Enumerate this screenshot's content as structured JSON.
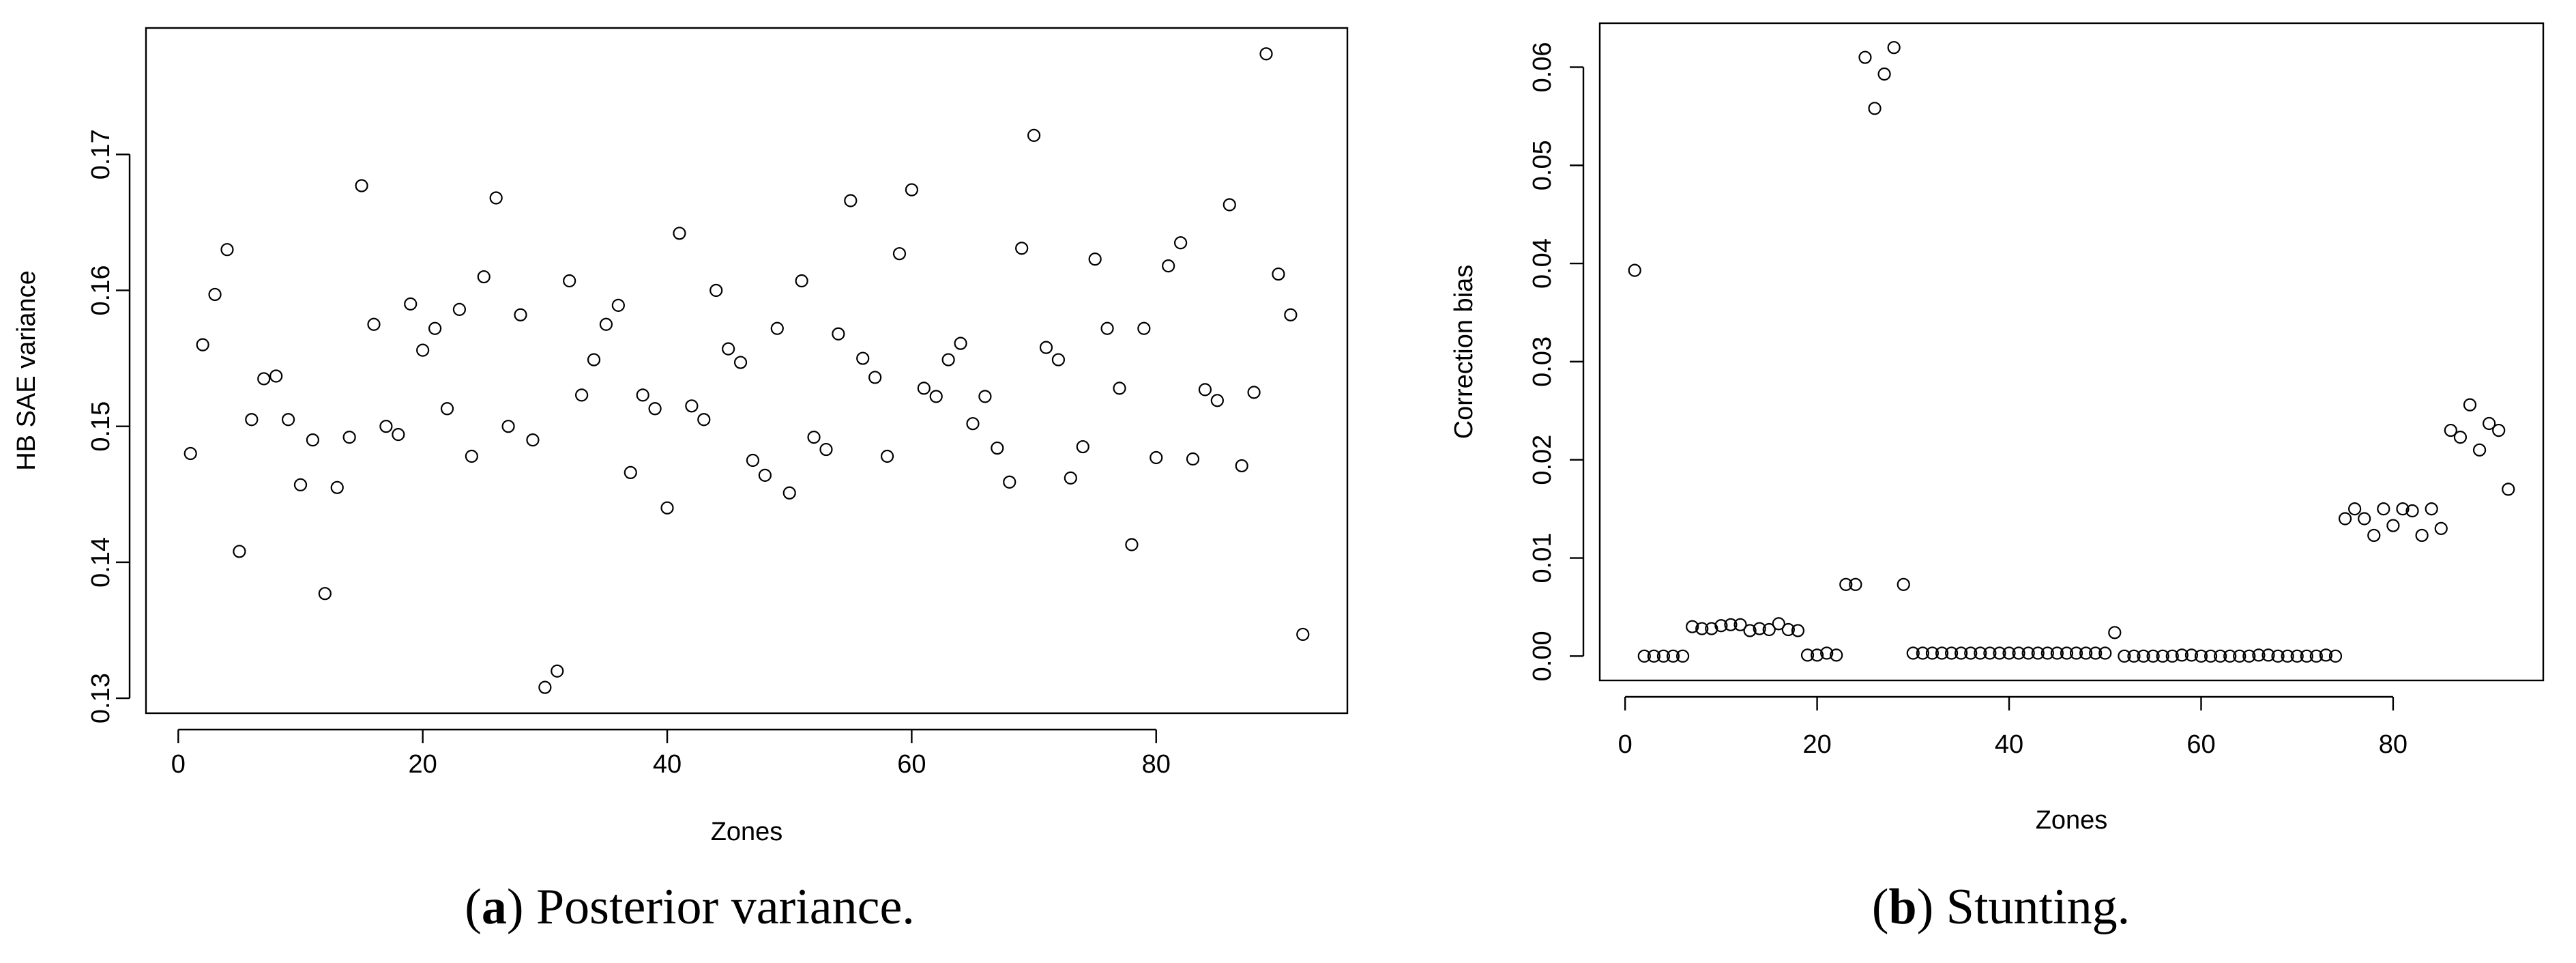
{
  "chart_data": [
    {
      "type": "scatter",
      "xlabel": "Zones",
      "ylabel": "HB SAE variance",
      "caption": [
        "(",
        "a",
        ") Posterior variance."
      ],
      "color": "#000000",
      "x": [
        1,
        2,
        3,
        4,
        5,
        6,
        7,
        8,
        9,
        10,
        11,
        12,
        13,
        14,
        15,
        16,
        17,
        18,
        19,
        20,
        21,
        22,
        23,
        24,
        25,
        26,
        27,
        28,
        29,
        30,
        31,
        32,
        33,
        34,
        35,
        36,
        37,
        38,
        39,
        40,
        41,
        42,
        43,
        44,
        45,
        46,
        47,
        48,
        49,
        50,
        51,
        52,
        53,
        54,
        55,
        56,
        57,
        58,
        59,
        60,
        61,
        62,
        63,
        64,
        65,
        66,
        67,
        68,
        69,
        70,
        71,
        72,
        73,
        74,
        75,
        76,
        77,
        78,
        79,
        80,
        81,
        82,
        83,
        84,
        85,
        86,
        87,
        88,
        89,
        90,
        91,
        92
      ],
      "values": [
        0.148,
        0.156,
        0.1597,
        0.163,
        0.1408,
        0.1505,
        0.1535,
        0.1537,
        0.1505,
        0.1457,
        0.149,
        0.1377,
        0.1455,
        0.1492,
        0.1677,
        0.1575,
        0.15,
        0.1494,
        0.159,
        0.1556,
        0.1572,
        0.1513,
        0.1586,
        0.1478,
        0.161,
        0.1668,
        0.15,
        0.1582,
        0.149,
        0.1308,
        0.132,
        0.1607,
        0.1523,
        0.1549,
        0.1575,
        0.1589,
        0.1466,
        0.1523,
        0.1513,
        0.144,
        0.1642,
        0.1515,
        0.1505,
        0.16,
        0.1557,
        0.1547,
        0.1475,
        0.1464,
        0.1572,
        0.1451,
        0.1607,
        0.1492,
        0.1483,
        0.1568,
        0.1666,
        0.155,
        0.1536,
        0.1478,
        0.1627,
        0.1674,
        0.1528,
        0.1522,
        0.1549,
        0.1561,
        0.1502,
        0.1522,
        0.1484,
        0.1459,
        0.1631,
        0.1714,
        0.1558,
        0.1549,
        0.1462,
        0.1485,
        0.1623,
        0.1572,
        0.1528,
        0.1413,
        0.1572,
        0.1477,
        0.1618,
        0.1635,
        0.1476,
        0.1527,
        0.1519,
        0.1663,
        0.1471,
        0.1525,
        0.1774,
        0.1612,
        0.1582,
        0.1347
      ],
      "xlim": [
        -2.64,
        95.64
      ],
      "ylim": [
        0.1289,
        0.1793
      ],
      "xticks": [
        0,
        20,
        40,
        60,
        80
      ],
      "yticks": [
        0.13,
        0.14,
        0.15,
        0.16,
        0.17
      ]
    },
    {
      "type": "scatter",
      "xlabel": "Zones",
      "ylabel": "Correction bias",
      "caption": [
        "(",
        "b",
        ") Stunting."
      ],
      "color": "#000000",
      "x": [
        1,
        2,
        3,
        4,
        5,
        6,
        7,
        8,
        9,
        10,
        11,
        12,
        13,
        14,
        15,
        16,
        17,
        18,
        19,
        20,
        21,
        22,
        23,
        24,
        25,
        26,
        27,
        28,
        29,
        30,
        31,
        32,
        33,
        34,
        35,
        36,
        37,
        38,
        39,
        40,
        41,
        42,
        43,
        44,
        45,
        46,
        47,
        48,
        49,
        50,
        51,
        52,
        53,
        54,
        55,
        56,
        57,
        58,
        59,
        60,
        61,
        62,
        63,
        64,
        65,
        66,
        67,
        68,
        69,
        70,
        71,
        72,
        73,
        74,
        75,
        76,
        77,
        78,
        79,
        80,
        81,
        82,
        83,
        84,
        85,
        86,
        87,
        88,
        89,
        90,
        91,
        92
      ],
      "values": [
        0.0393,
        0,
        0,
        0,
        0,
        0,
        0.003,
        0.0028,
        0.0028,
        0.0031,
        0.0032,
        0.0032,
        0.0026,
        0.0028,
        0.0027,
        0.0033,
        0.0027,
        0.0026,
        0.0001,
        0.0001,
        0.0003,
        0.0001,
        0.0073,
        0.0073,
        0.061,
        0.0558,
        0.0593,
        0.062,
        0.0073,
        0.0003,
        0.0003,
        0.0003,
        0.0003,
        0.0003,
        0.0003,
        0.0003,
        0.0003,
        0.0003,
        0.0003,
        0.0003,
        0.0003,
        0.0003,
        0.0003,
        0.0003,
        0.0003,
        0.0003,
        0.0003,
        0.0003,
        0.0003,
        0.0003,
        0.0024,
        0,
        0,
        0,
        0,
        0,
        0,
        0.0001,
        0.0001,
        0,
        0,
        0,
        0,
        0,
        0,
        0.0001,
        0.0001,
        0,
        0,
        0,
        0,
        0,
        0.0001,
        0,
        0.014,
        0.015,
        0.014,
        0.0123,
        0.015,
        0.0133,
        0.015,
        0.0148,
        0.0123,
        0.015,
        0.013,
        0.023,
        0.0223,
        0.0256,
        0.021,
        0.0237,
        0.023,
        0.017
      ],
      "xlim": [
        -2.64,
        95.64
      ],
      "ylim": [
        -0.00248,
        0.06448
      ],
      "xticks": [
        0,
        20,
        40,
        60,
        80
      ],
      "yticks": [
        {
          "value": 0,
          "label": "0.00"
        },
        0.01,
        0.02,
        0.03,
        0.04,
        0.05,
        0.06
      ]
    }
  ]
}
